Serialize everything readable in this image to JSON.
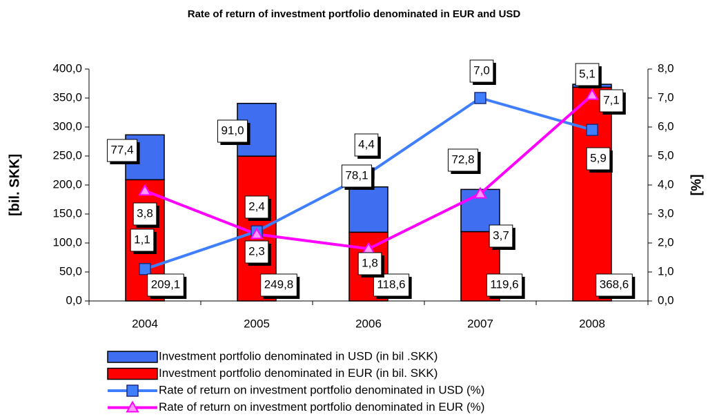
{
  "chart_data": {
    "type": "stacked-bar-line",
    "title": "Rate of return of investment portfolio denominated in EUR and USD",
    "y_label": "[bil. SKK]",
    "y2_label": "[%]",
    "categories": [
      "2004",
      "2005",
      "2006",
      "2007",
      "2008"
    ],
    "ylim": [
      0,
      400
    ],
    "yticks": [
      {
        "value": 0,
        "label": "0,0"
      },
      {
        "value": 50,
        "label": "50,0"
      },
      {
        "value": 100,
        "label": "100,0"
      },
      {
        "value": 150,
        "label": "150,0"
      },
      {
        "value": 200,
        "label": "200,0"
      },
      {
        "value": 250,
        "label": "250,0"
      },
      {
        "value": 300,
        "label": "300,0"
      },
      {
        "value": 350,
        "label": "350,0"
      },
      {
        "value": 400,
        "label": "400,0"
      }
    ],
    "y2lim": [
      0,
      8
    ],
    "y2ticks": [
      {
        "value": 0,
        "label": "0,0"
      },
      {
        "value": 1,
        "label": "1,0"
      },
      {
        "value": 2,
        "label": "2,0"
      },
      {
        "value": 3,
        "label": "3,0"
      },
      {
        "value": 4,
        "label": "4,0"
      },
      {
        "value": 5,
        "label": "5,0"
      },
      {
        "value": 6,
        "label": "6,0"
      },
      {
        "value": 7,
        "label": "7,0"
      },
      {
        "value": 8,
        "label": "8,0"
      }
    ],
    "series": [
      {
        "name": "Investment portfolio denominated in USD (in bil .SKK)",
        "kind": "bar",
        "color": "#3f6ff0",
        "values": [
          77.4,
          91.0,
          78.1,
          72.8,
          5.1
        ],
        "value_labels": [
          "77,4",
          "91,0",
          "78,1",
          "72,8",
          "5,1"
        ]
      },
      {
        "name": "Investment portfolio denominated in EUR (in bil. SKK)",
        "kind": "bar",
        "color": "#ff0000",
        "values": [
          209.1,
          249.8,
          118.6,
          119.6,
          368.6
        ],
        "value_labels": [
          "209,1",
          "249,8",
          "118,6",
          "119,6",
          "368,6"
        ]
      },
      {
        "name": "Rate of return on investment portfolio denominated in USD (%)",
        "kind": "line",
        "axis": "y2",
        "color": "#3f7fff",
        "marker": "square",
        "values": [
          1.1,
          2.4,
          4.4,
          7.0,
          5.9
        ],
        "value_labels": [
          "1,1",
          "2,4",
          "4,4",
          "7,0",
          "5,9"
        ]
      },
      {
        "name": "Rate of return on investment portfolio denominated in EUR (%)",
        "kind": "line",
        "axis": "y2",
        "color": "#ff00ff",
        "marker": "triangle",
        "values": [
          3.8,
          2.3,
          1.8,
          3.7,
          7.1
        ],
        "value_labels": [
          "3,8",
          "2,3",
          "1,8",
          "3,7",
          "7,1"
        ]
      }
    ]
  }
}
